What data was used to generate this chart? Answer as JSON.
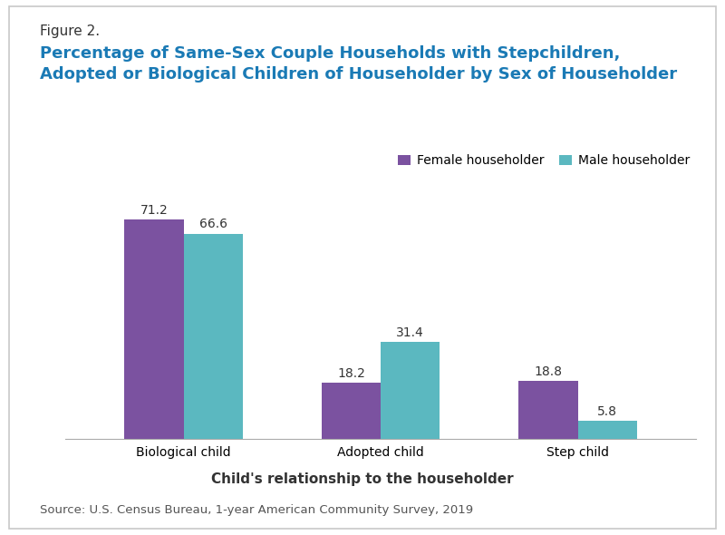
{
  "figure_label": "Figure 2.",
  "title_line1": "Percentage of Same-Sex Couple Households with Stepchildren,",
  "title_line2": "Adopted or Biological Children of Householder by Sex of Householder",
  "categories": [
    "Biological child",
    "Adopted child",
    "Step child"
  ],
  "female_values": [
    71.2,
    18.2,
    18.8
  ],
  "male_values": [
    66.6,
    31.4,
    5.8
  ],
  "female_color": "#7B52A0",
  "male_color": "#5BB8C0",
  "xlabel": "Child's relationship to the householder",
  "legend_female": "Female householder",
  "legend_male": "Male householder",
  "source": "Source: U.S. Census Bureau, 1-year American Community Survey, 2019",
  "figure_label_color": "#333333",
  "title_color": "#1A7AB5",
  "label_color": "#333333",
  "background_color": "#FFFFFF",
  "border_color": "#C8C8C8",
  "ylim": [
    0,
    80
  ],
  "bar_width": 0.3,
  "figure_label_fontsize": 11,
  "title_fontsize": 13,
  "value_fontsize": 10,
  "tick_fontsize": 10,
  "xlabel_fontsize": 11,
  "legend_fontsize": 10,
  "source_fontsize": 9.5
}
